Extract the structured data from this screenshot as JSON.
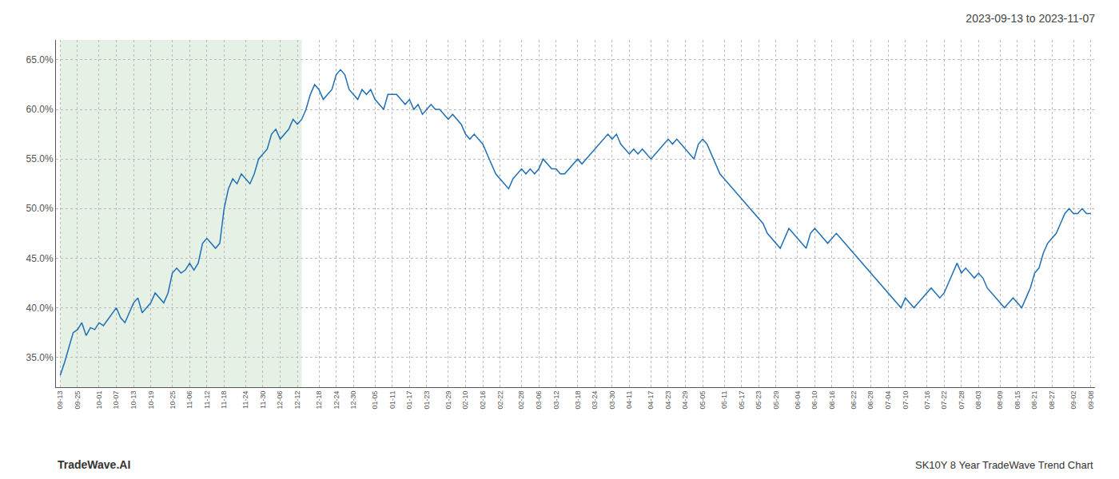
{
  "chart_data": {
    "type": "line",
    "title": "2023-09-13 to 2023-11-07",
    "annotations": [
      "TradeWave.AI",
      "SK10Y 8 Year TradeWave Trend Chart"
    ],
    "categories": [
      "09-13",
      null,
      null,
      null,
      "09-25",
      null,
      null,
      null,
      null,
      "10-01",
      null,
      null,
      null,
      "10-07",
      null,
      null,
      null,
      "10-13",
      null,
      null,
      null,
      "10-19",
      null,
      null,
      null,
      null,
      "10-25",
      null,
      null,
      null,
      "11-06",
      null,
      null,
      null,
      "11-12",
      null,
      null,
      null,
      "11-18",
      null,
      null,
      null,
      null,
      "11-24",
      null,
      null,
      null,
      "11-30",
      null,
      null,
      null,
      "12-06",
      null,
      null,
      null,
      "12-12",
      null,
      null,
      null,
      null,
      "12-18",
      null,
      null,
      null,
      "12-24",
      null,
      null,
      null,
      "12-30",
      null,
      null,
      null,
      null,
      "01-05",
      null,
      null,
      null,
      "01-11",
      null,
      null,
      null,
      "01-17",
      null,
      null,
      null,
      "01-23",
      null,
      null,
      null,
      null,
      "01-29",
      null,
      null,
      null,
      "02-10",
      null,
      null,
      null,
      "02-16",
      null,
      null,
      null,
      "02-22",
      null,
      null,
      null,
      null,
      "02-28",
      null,
      null,
      null,
      "03-06",
      null,
      null,
      null,
      "03-12",
      null,
      null,
      null,
      null,
      "03-18",
      null,
      null,
      null,
      "03-24",
      null,
      null,
      null,
      "03-30",
      null,
      null,
      null,
      "04-11",
      null,
      null,
      null,
      null,
      "04-17",
      null,
      null,
      null,
      "04-23",
      null,
      null,
      null,
      "04-29",
      null,
      null,
      null,
      "05-05",
      null,
      null,
      null,
      null,
      "05-11",
      null,
      null,
      null,
      "05-17",
      null,
      null,
      null,
      "05-23",
      null,
      null,
      null,
      "05-29",
      null,
      null,
      null,
      null,
      "06-04",
      null,
      null,
      null,
      "06-10",
      null,
      null,
      null,
      "06-16",
      null,
      null,
      null,
      null,
      "06-22",
      null,
      null,
      null,
      "06-28",
      null,
      null,
      null,
      "07-04",
      null,
      null,
      null,
      "07-10",
      null,
      null,
      null,
      null,
      "07-16",
      null,
      null,
      null,
      "07-22",
      null,
      null,
      null,
      "07-28",
      null,
      null,
      null,
      "08-03",
      null,
      null,
      null,
      null,
      "08-09",
      null,
      null,
      null,
      "08-15",
      null,
      null,
      null,
      "08-21",
      null,
      null,
      null,
      "08-27",
      null,
      null,
      null,
      null,
      "09-02",
      null,
      null,
      null,
      "09-08"
    ],
    "values": [
      33.2,
      34.5,
      36.0,
      37.5,
      37.8,
      38.5,
      37.2,
      38.0,
      37.8,
      38.5,
      38.2,
      38.8,
      39.5,
      40.0,
      39.0,
      38.5,
      39.5,
      40.5,
      41.0,
      39.5,
      40.0,
      40.5,
      41.5,
      41.0,
      40.5,
      41.5,
      43.5,
      44.0,
      43.5,
      43.8,
      44.5,
      43.8,
      44.5,
      46.5,
      47.0,
      46.5,
      46.0,
      46.5,
      50.0,
      52.0,
      53.0,
      52.5,
      53.5,
      53.0,
      52.5,
      53.5,
      55.0,
      55.5,
      56.0,
      57.5,
      58.0,
      57.0,
      57.5,
      58.0,
      59.0,
      58.5,
      59.0,
      60.0,
      61.5,
      62.5,
      62.0,
      61.0,
      61.5,
      62.0,
      63.5,
      64.0,
      63.5,
      62.0,
      61.5,
      61.0,
      62.0,
      61.5,
      62.0,
      61.0,
      60.5,
      60.0,
      61.5,
      61.5,
      61.5,
      61.0,
      60.5,
      61.0,
      60.0,
      60.5,
      59.5,
      60.0,
      60.5,
      60.0,
      60.0,
      59.5,
      59.0,
      59.5,
      59.0,
      58.5,
      57.5,
      57.0,
      57.5,
      57.0,
      56.5,
      55.5,
      54.5,
      53.5,
      53.0,
      52.5,
      52.0,
      53.0,
      53.5,
      54.0,
      53.5,
      54.0,
      53.5,
      54.0,
      55.0,
      54.5,
      54.0,
      54.0,
      53.5,
      53.5,
      54.0,
      54.5,
      55.0,
      54.5,
      55.0,
      55.5,
      56.0,
      56.5,
      57.0,
      57.5,
      57.0,
      57.5,
      56.5,
      56.0,
      55.5,
      56.0,
      55.5,
      56.0,
      55.5,
      55.0,
      55.5,
      56.0,
      56.5,
      57.0,
      56.5,
      57.0,
      56.5,
      56.0,
      55.5,
      55.0,
      56.5,
      57.0,
      56.5,
      55.5,
      54.5,
      53.5,
      53.0,
      52.5,
      52.0,
      51.5,
      51.0,
      50.5,
      50.0,
      49.5,
      49.0,
      48.5,
      47.5,
      47.0,
      46.5,
      46.0,
      47.0,
      48.0,
      47.5,
      47.0,
      46.5,
      46.0,
      47.5,
      48.0,
      47.5,
      47.0,
      46.5,
      47.0,
      47.5,
      47.0,
      46.5,
      46.0,
      45.5,
      45.0,
      44.5,
      44.0,
      43.5,
      43.0,
      42.5,
      42.0,
      41.5,
      41.0,
      40.5,
      40.0,
      41.0,
      40.5,
      40.0,
      40.5,
      41.0,
      41.5,
      42.0,
      41.5,
      41.0,
      41.5,
      42.5,
      43.5,
      44.5,
      43.5,
      44.0,
      43.5,
      43.0,
      43.5,
      43.0,
      42.0,
      41.5,
      41.0,
      40.5,
      40.0,
      40.5,
      41.0,
      40.5,
      40.0,
      41.0,
      42.0,
      43.5,
      44.0,
      45.5,
      46.5,
      47.0,
      47.5,
      48.5,
      49.5,
      50.0,
      49.5,
      49.5,
      50.0,
      49.5,
      49.5
    ],
    "color": "#1f6eb5",
    "ylim": [
      32.0,
      67.0
    ],
    "yticks": [
      {
        "value": 35.0,
        "label": "35.0%"
      },
      {
        "value": 40.0,
        "label": "40.0%"
      },
      {
        "value": 45.0,
        "label": "45.0%"
      },
      {
        "value": 50.0,
        "label": "50.0%"
      },
      {
        "value": 55.0,
        "label": "55.0%"
      },
      {
        "value": 60.0,
        "label": "60.0%"
      },
      {
        "value": 65.0,
        "label": "65.0%"
      }
    ],
    "grid": true,
    "shading": {
      "start": 0,
      "end": 56,
      "color": "#d4e8d4"
    }
  }
}
